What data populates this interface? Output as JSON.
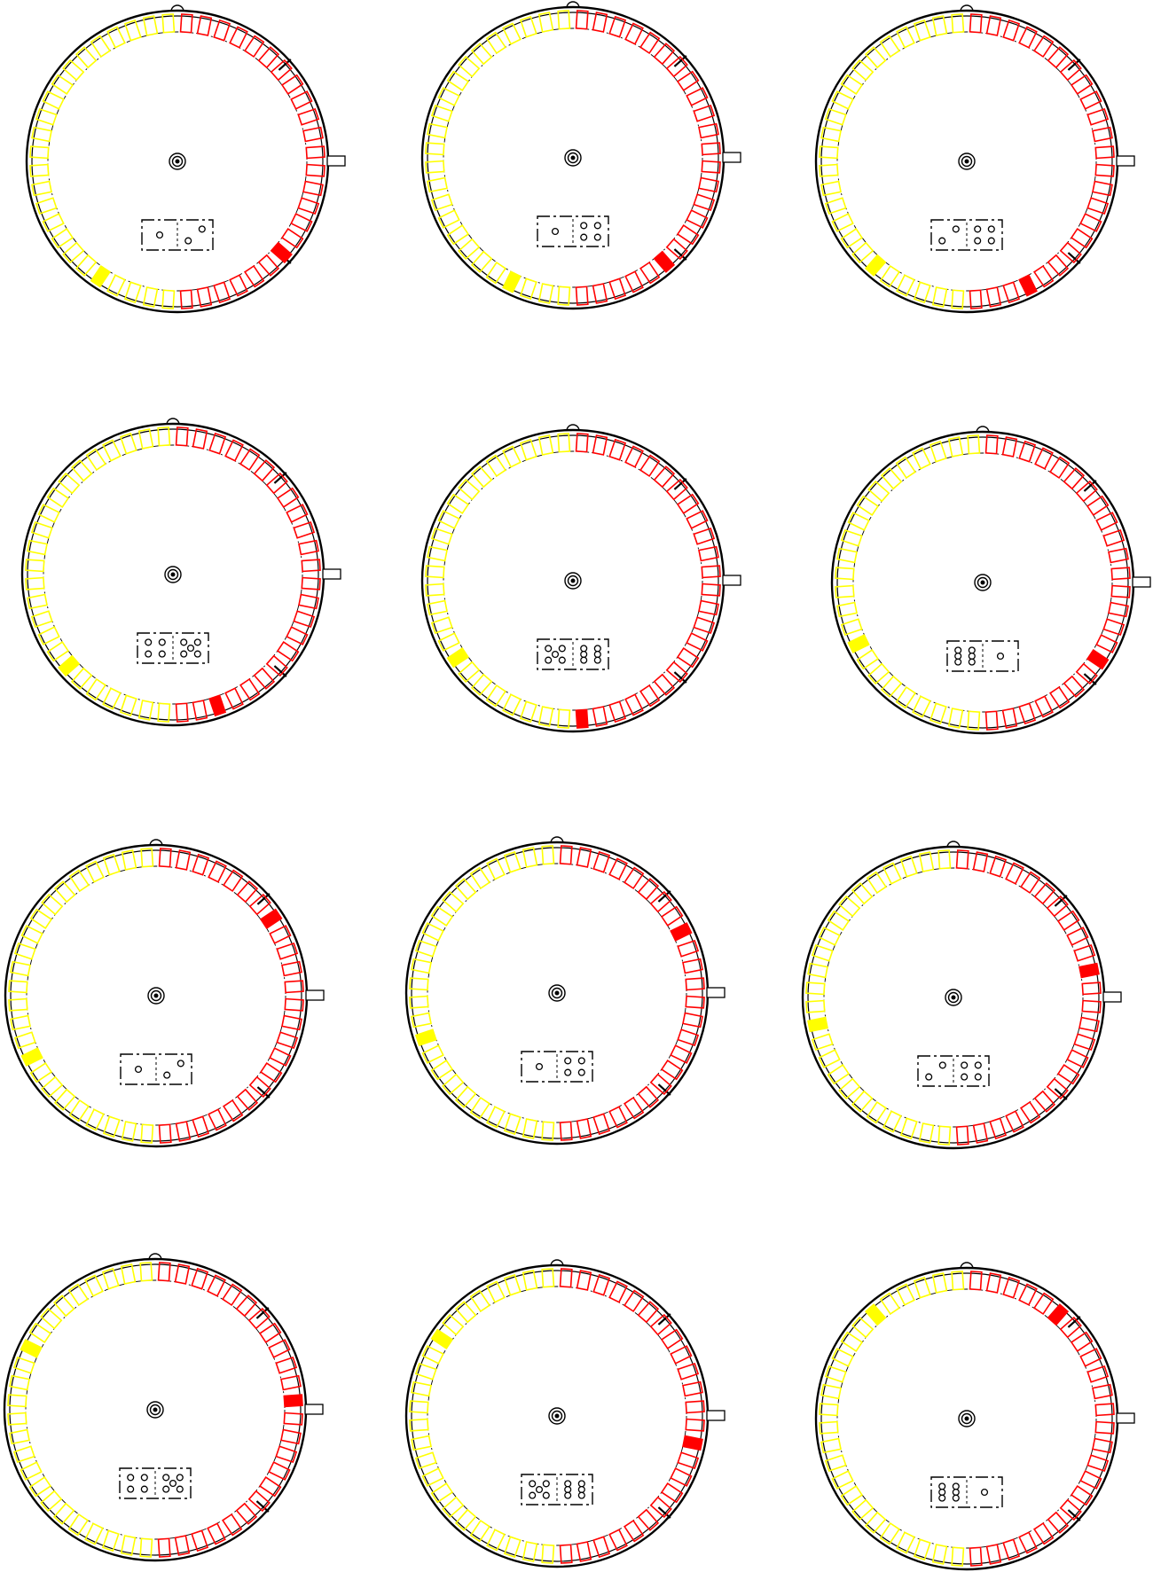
{
  "colors": {
    "yellow": "#ffff00",
    "red": "#ff0000",
    "line": "#000000",
    "background": "#ffffff"
  },
  "ring": {
    "yellow_segments": 24,
    "red_segments": 24
  },
  "dials": [
    {
      "id": "dial-1",
      "yellow_filled_index": 19,
      "red_filled_index": 17,
      "domino": [
        1,
        2
      ]
    },
    {
      "id": "dial-2",
      "yellow_filled_index": 20,
      "red_filled_index": 18,
      "domino": [
        1,
        4
      ]
    },
    {
      "id": "dial-3",
      "yellow_filled_index": 18,
      "red_filled_index": 20,
      "domino": [
        2,
        4
      ]
    },
    {
      "id": "dial-4",
      "yellow_filled_index": 17,
      "red_filled_index": 21,
      "domino": [
        4,
        5
      ]
    },
    {
      "id": "dial-5",
      "yellow_filled_index": 16,
      "red_filled_index": 23,
      "domino": [
        5,
        6
      ]
    },
    {
      "id": "dial-6",
      "yellow_filled_index": 15,
      "red_filled_index": 16,
      "domino": [
        6,
        1
      ]
    },
    {
      "id": "dial-7",
      "yellow_filled_index": 15,
      "red_filled_index": 7,
      "domino": [
        1,
        2
      ]
    },
    {
      "id": "dial-8",
      "yellow_filled_index": 14,
      "red_filled_index": 8,
      "domino": [
        1,
        4
      ]
    },
    {
      "id": "dial-9",
      "yellow_filled_index": 13,
      "red_filled_index": 10,
      "domino": [
        2,
        4
      ]
    },
    {
      "id": "dial-10",
      "yellow_filled_index": 8,
      "red_filled_index": 11,
      "domino": [
        4,
        5
      ]
    },
    {
      "id": "dial-11",
      "yellow_filled_index": 7,
      "red_filled_index": 13,
      "domino": [
        5,
        6
      ]
    },
    {
      "id": "dial-12",
      "yellow_filled_index": 5,
      "red_filled_index": 5,
      "domino": [
        6,
        1
      ]
    }
  ]
}
